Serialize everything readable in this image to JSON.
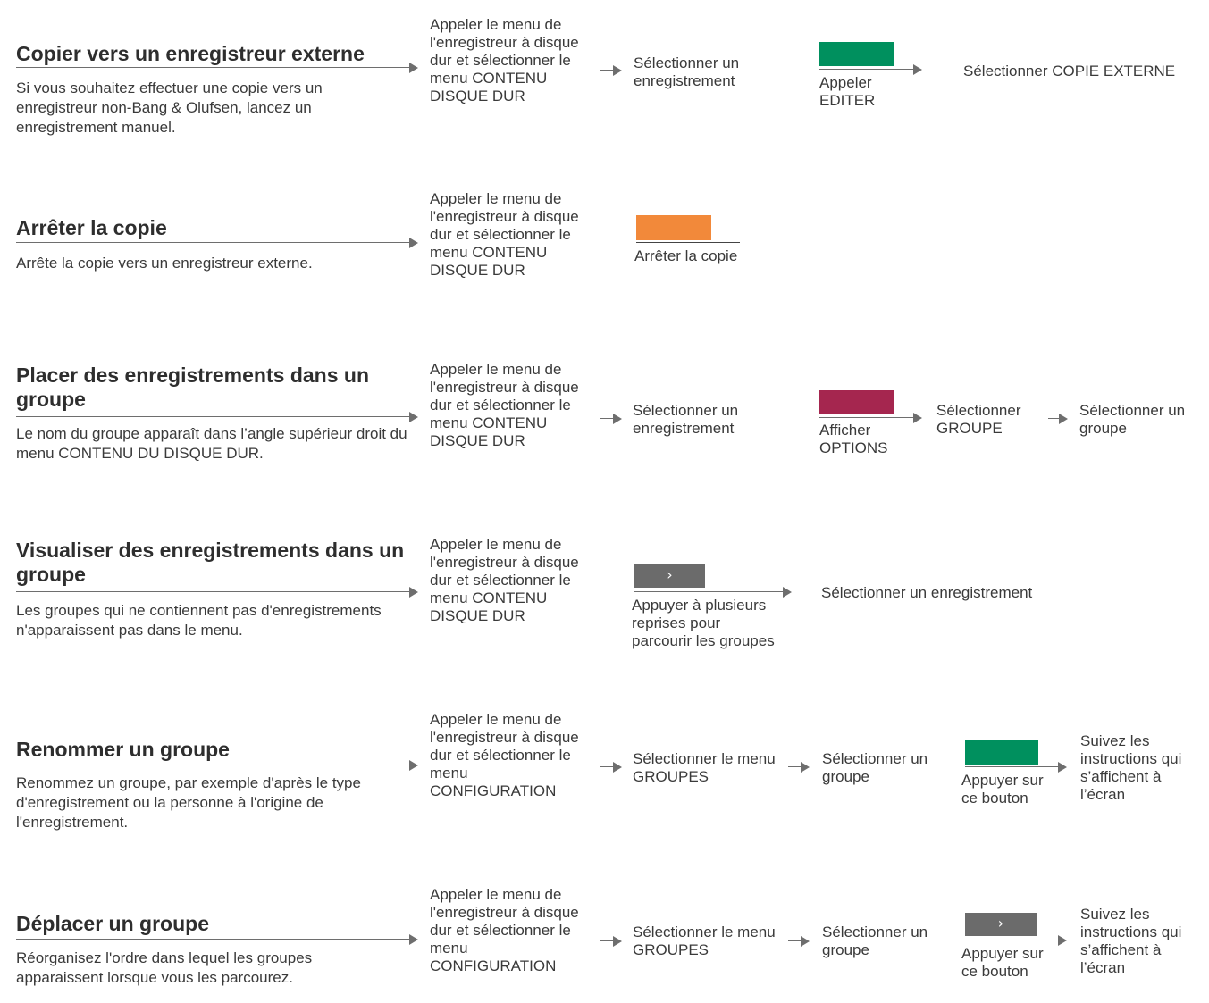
{
  "colors": {
    "green": "#00905e",
    "orange": "#f2893a",
    "red": "#a5264f",
    "grey": "#6b6b6b",
    "arrow": "#6e6e6e"
  },
  "icons": {
    "arrow": "right-arrow-icon",
    "chevron": "chevron-right-icon"
  },
  "rows": [
    {
      "title": "Copier vers un enregistreur externe",
      "desc": "Si vous souhaitez effectuer une copie vers un enregistreur non-Bang & Olufsen, lancez un enregistrement manuel.",
      "step1": "Appeler le menu de l'enregistreur à disque dur et sélectionner le menu CONTENU DISQUE DUR",
      "step2": "Sélectionner un enregistrement",
      "button_label": "Appeler EDITER",
      "step4": "Sélectionner COPIE EXTERNE"
    },
    {
      "title": "Arrêter la copie",
      "desc": "Arrête la copie vers un enregistreur externe.",
      "step1": "Appeler le menu de l'enregistreur à disque dur et sélectionner le menu CONTENU DISQUE DUR",
      "button_label": "Arrêter la copie"
    },
    {
      "title": "Placer des enregistrements dans un groupe",
      "desc": "Le nom du groupe apparaît dans l’angle supérieur droit du menu CONTENU DU DISQUE DUR.",
      "step1": "Appeler le menu de l'enregistreur à disque dur et sélectionner le menu CONTENU DISQUE DUR",
      "step2": "Sélectionner un enregistrement",
      "button_label": "Afficher OPTIONS",
      "step4": "Sélectionner GROUPE",
      "step5": "Sélectionner un groupe"
    },
    {
      "title": "Visualiser des enregistrements dans un groupe",
      "desc": "Les groupes qui ne contiennent pas d'enregistrements n'apparaissent pas dans le menu.",
      "step1": "Appeler le menu de l'enregistreur à disque dur et sélectionner le menu CONTENU DISQUE DUR",
      "button_label": "Appuyer à plusieurs reprises pour parcourir les groupes",
      "chevron": "›",
      "step4": "Sélectionner un enregistrement"
    },
    {
      "title": "Renommer un groupe",
      "desc": "Renommez un groupe, par exemple d'après le type d'enregistrement ou la personne à l'origine de l'enregistrement.",
      "step1": "Appeler le menu de l'enregistreur à disque dur et sélectionner le menu CONFIGURATION",
      "step2": "Sélectionner le menu GROUPES",
      "step3": "Sélectionner un groupe",
      "button_label": "Appuyer sur ce bouton",
      "step5": "Suivez les instructions qui s’affichent à l’écran"
    },
    {
      "title": "Déplacer un groupe",
      "desc": "Réorganisez l'ordre dans lequel les groupes apparaissent lorsque vous les parcourez.",
      "step1": "Appeler le menu de l'enregistreur à disque dur et sélectionner le menu CONFIGURATION",
      "step2": "Sélectionner le menu GROUPES",
      "step3": "Sélectionner un groupe",
      "button_label": "Appuyer sur ce bouton",
      "chevron": "›",
      "step5": "Suivez les instructions qui s’affichent à l’écran"
    }
  ]
}
